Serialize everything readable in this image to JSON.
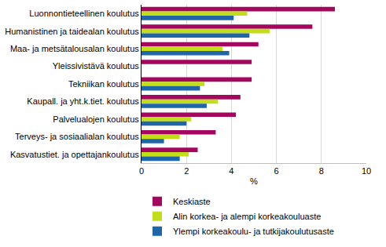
{
  "chart_data": {
    "type": "bar",
    "orientation": "horizontal",
    "categories": [
      "Luonnontieteellinen koulutus",
      "Humanistinen ja taidealan koulutus",
      "Maa- ja metsätalousalan koulutus",
      "Yleissivistävä koulutus",
      "Tekniikan koulutus",
      "Kaupall. ja yht.k.tiet. koulutus",
      "Palvelualojen koulutus",
      "Terveys- ja sosiaalialan koulutus",
      "Kasvatustiet. ja opettajankoulutus"
    ],
    "series": [
      {
        "name": "Keskiaste",
        "color": "#a3085e",
        "values": [
          8.6,
          7.6,
          5.2,
          4.9,
          4.9,
          4.4,
          4.2,
          3.3,
          2.5
        ]
      },
      {
        "name": "Alin korkea- ja alempi korkeakouluaste",
        "color": "#c2dd1a",
        "values": [
          4.7,
          5.7,
          3.6,
          null,
          2.8,
          3.4,
          2.2,
          1.7,
          2.1
        ]
      },
      {
        "name": "Ylempi korkeakoulu- ja tutkijakoulutusaste",
        "color": "#1f66a8",
        "values": [
          4.1,
          4.8,
          3.9,
          null,
          2.6,
          2.9,
          2.0,
          1.0,
          1.7
        ]
      }
    ],
    "x_label": "%",
    "xlim": [
      0,
      10
    ],
    "xticks": [
      0,
      2,
      4,
      6,
      8,
      10
    ],
    "grid": true,
    "legend": "bottom"
  }
}
